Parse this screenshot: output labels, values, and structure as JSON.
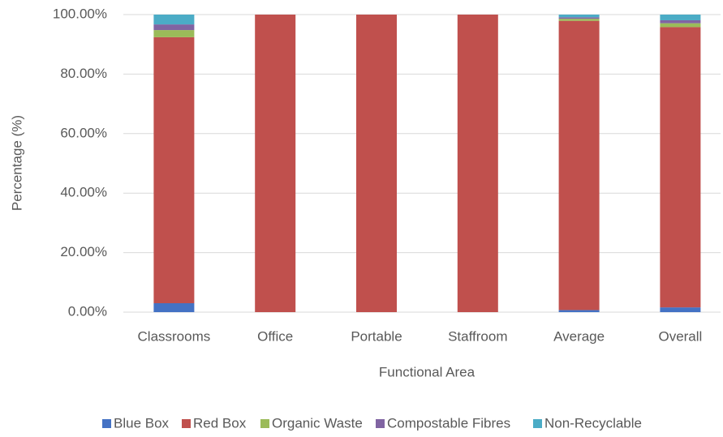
{
  "chart_data": {
    "type": "stacked_bar",
    "y_label": "Percentage (%)",
    "x_label": "Functional Area",
    "categories": [
      "Classrooms",
      "Office",
      "Portable",
      "Staffroom",
      "Average",
      "Overall"
    ],
    "series": [
      {
        "name": "Blue Box",
        "color": "#4472c4",
        "values": [
          3.0,
          0,
          0,
          0,
          0.7,
          1.6
        ]
      },
      {
        "name": "Red Box",
        "color": "#c0504d",
        "values": [
          89.4,
          100,
          100,
          100,
          97.2,
          94.2
        ]
      },
      {
        "name": "Organic Waste",
        "color": "#9bbb59",
        "values": [
          2.4,
          0,
          0,
          0,
          0.7,
          1.3
        ]
      },
      {
        "name": "Compostable Fibres",
        "color": "#8064a2",
        "values": [
          1.9,
          0,
          0,
          0,
          0.5,
          1.0
        ]
      },
      {
        "name": "Non-Recyclable",
        "color": "#4bacc6",
        "values": [
          3.3,
          0,
          0,
          0,
          0.9,
          1.9
        ]
      }
    ],
    "ylim": [
      0,
      100
    ],
    "yticks": [
      {
        "value": 0,
        "label": "0.00%"
      },
      {
        "value": 20,
        "label": "20.00%"
      },
      {
        "value": 40,
        "label": "40.00%"
      },
      {
        "value": 60,
        "label": "60.00%"
      },
      {
        "value": 80,
        "label": "80.00%"
      },
      {
        "value": 100,
        "label": "100.00%"
      }
    ],
    "grid": true,
    "legend": "bottom"
  }
}
